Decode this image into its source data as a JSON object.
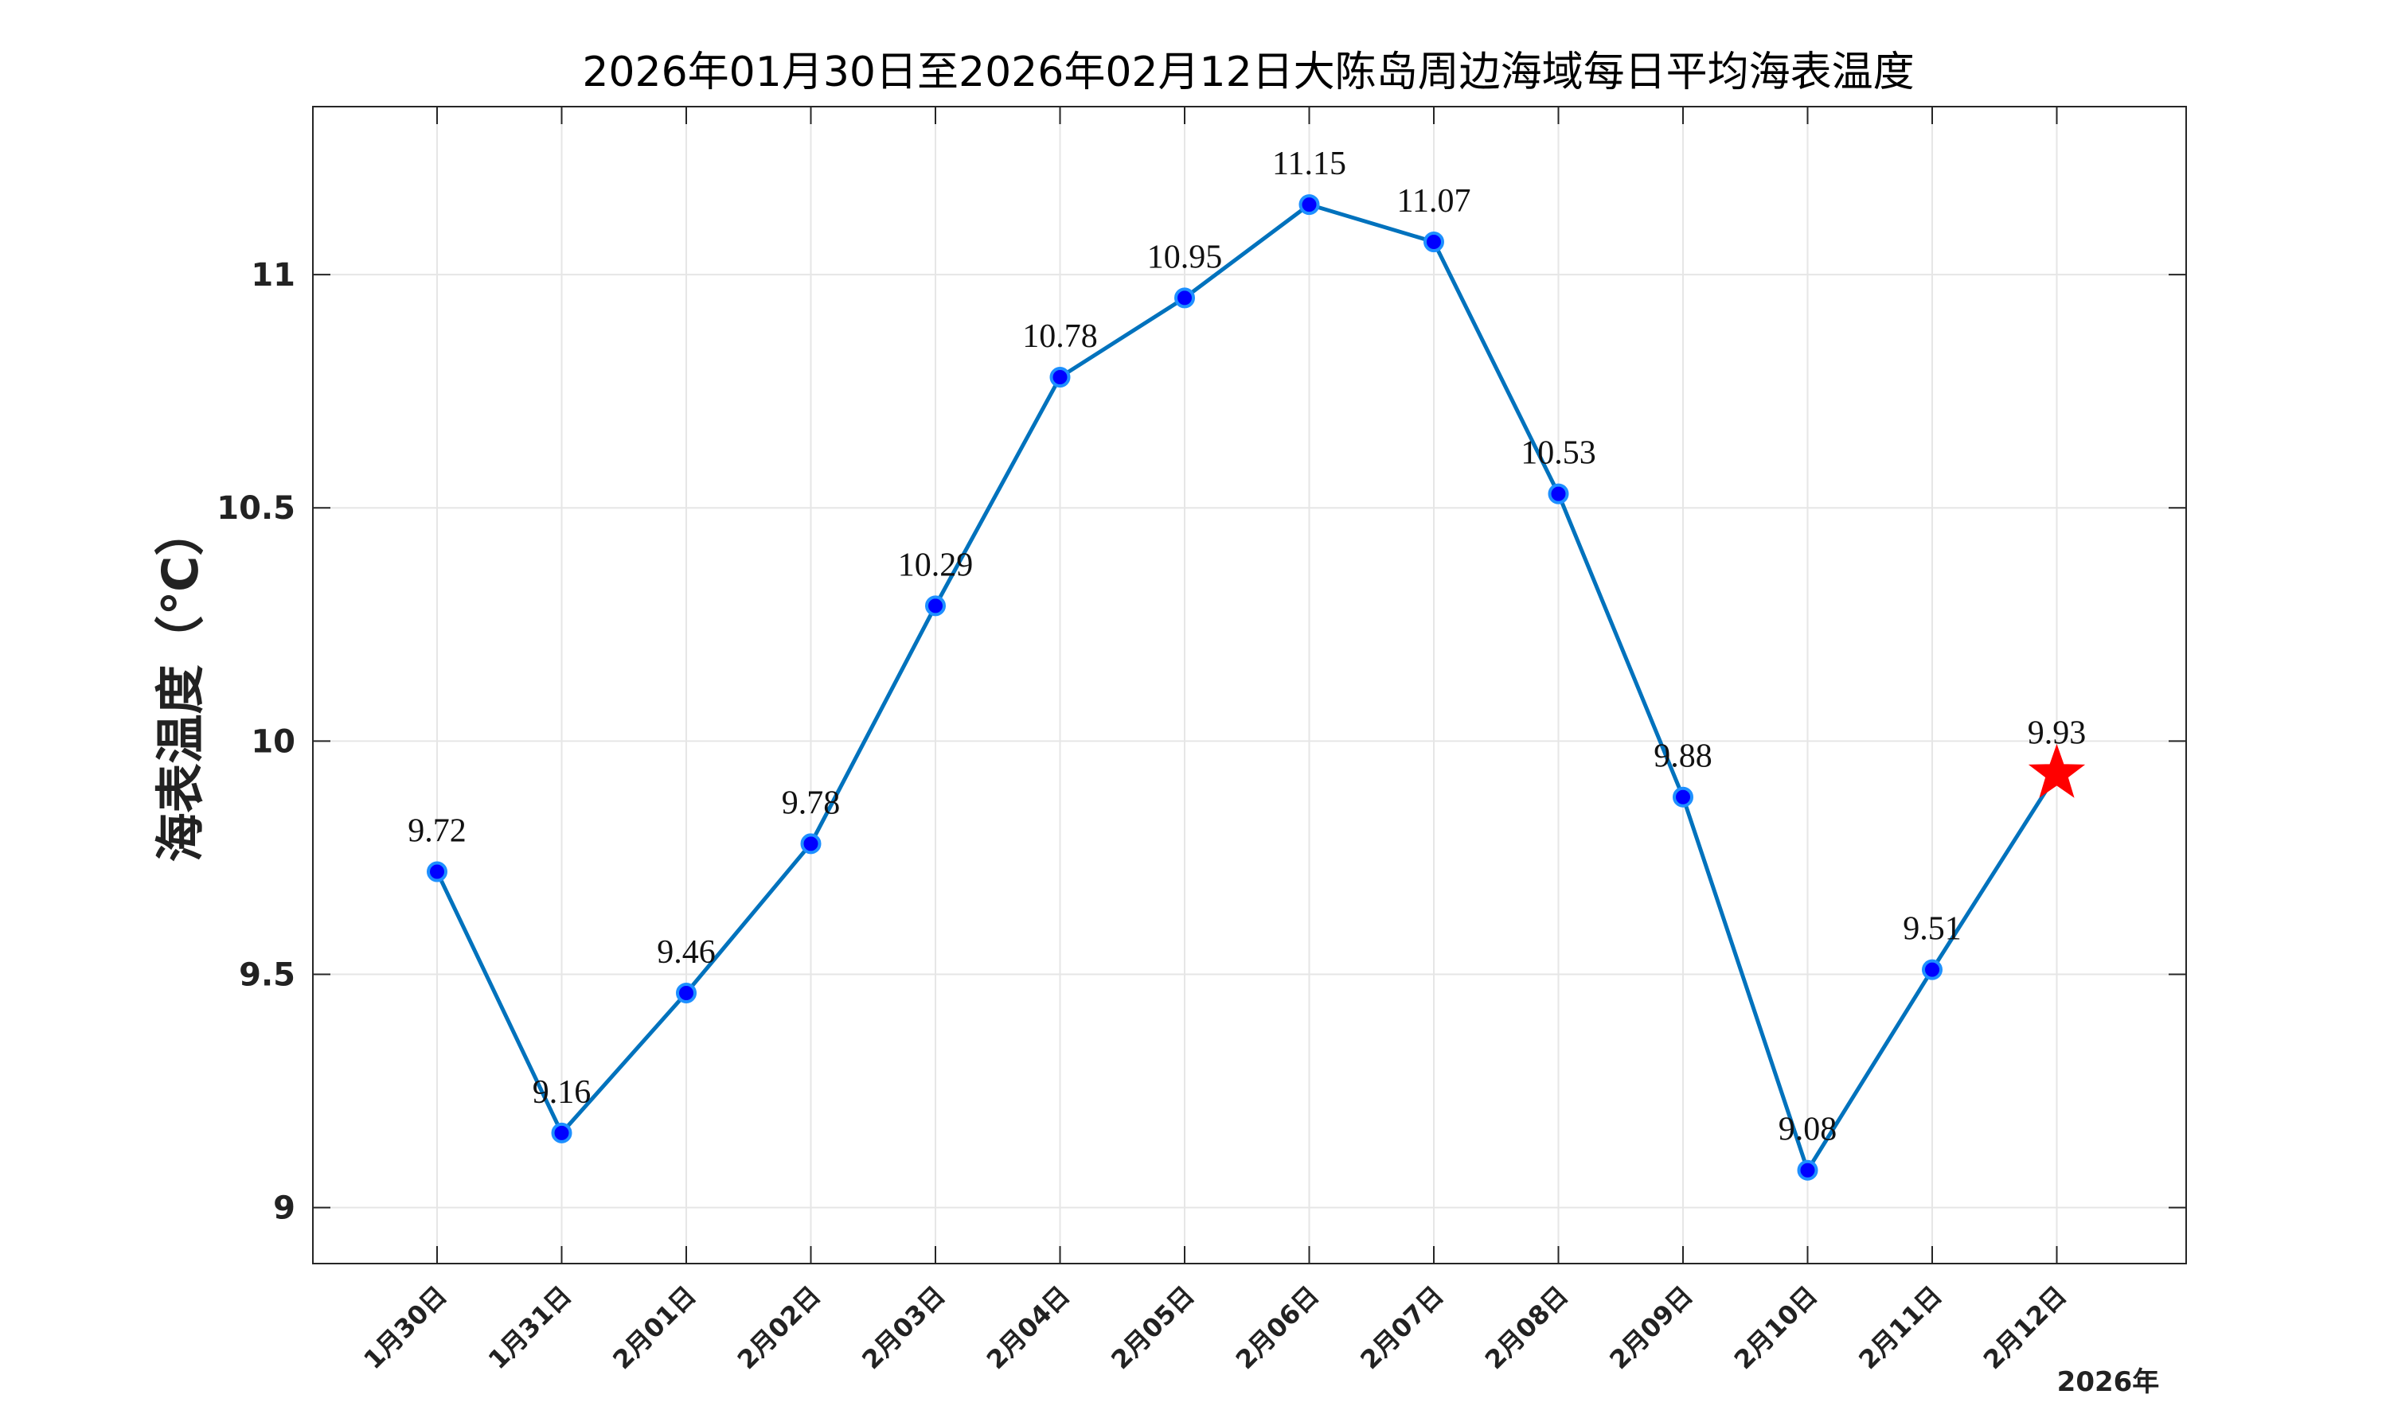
{
  "chart_data": {
    "type": "line",
    "title": "2026年01月30日至2026年02月12日大陈岛周边海域每日平均海表温度",
    "ylabel": "海表温度（℃）",
    "xlabel": "2026年",
    "categories": [
      "1月30日",
      "1月31日",
      "2月01日",
      "2月02日",
      "2月03日",
      "2月04日",
      "2月05日",
      "2月06日",
      "2月07日",
      "2月08日",
      "2月09日",
      "2月10日",
      "2月11日",
      "2月12日"
    ],
    "series": [
      {
        "values": [
          9.72,
          9.16,
          9.46,
          9.78,
          10.29,
          10.78,
          10.95,
          11.15,
          11.07,
          10.53,
          9.88,
          9.08,
          9.51,
          9.93
        ],
        "data_labels": [
          "9.72",
          "9.16",
          "9.46",
          "9.78",
          "10.29",
          "10.78",
          "10.95",
          "11.15",
          "11.07",
          "10.53",
          "9.88",
          "9.08",
          "9.51",
          "9.93"
        ]
      }
    ],
    "ylim": [
      8.88,
      11.36
    ],
    "yticks": [
      9,
      9.5,
      10,
      10.5,
      11
    ],
    "ytick_labels": [
      "9",
      "9.5",
      "10",
      "10.5",
      "11"
    ],
    "grid": true,
    "last_point_marker": "star",
    "colors": {
      "line": "#0072BD",
      "marker_fill": "#0000FF",
      "marker_edge": "#1E90FF",
      "star": "#FF0000",
      "grid": "#E6E6E6",
      "axes": "#262626"
    }
  }
}
